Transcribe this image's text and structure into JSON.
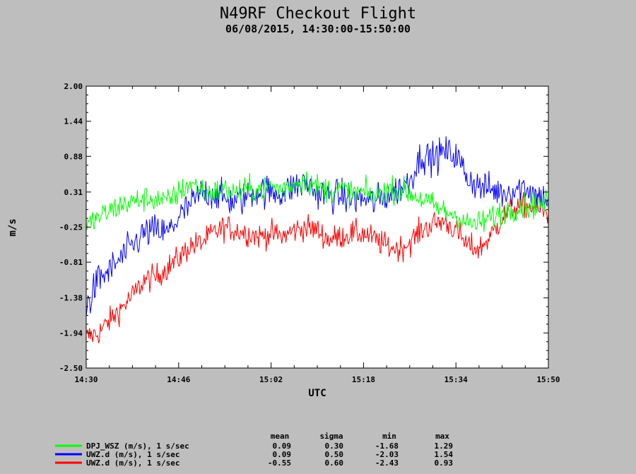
{
  "chart_data": {
    "type": "line",
    "title": "N49RF Checkout Flight",
    "subtitle": "06/08/2015, 14:30:00-15:50:00",
    "xlabel": "UTC",
    "ylabel": "m/s",
    "xlim": [
      "14:30",
      "15:50"
    ],
    "ylim": [
      -2.5,
      2.0
    ],
    "x_ticks": [
      "14:30",
      "14:46",
      "15:02",
      "15:18",
      "15:34",
      "15:50"
    ],
    "y_ticks": [
      "2.00",
      "1.44",
      "0.88",
      "0.31",
      "-0.25",
      "-0.81",
      "-1.38",
      "-1.94",
      "-2.50"
    ],
    "grid": false,
    "legend_position": "bottom-left",
    "stats_headers": [
      "mean",
      "sigma",
      "min",
      "max"
    ],
    "series": [
      {
        "name": "UWZ.d (m/s), 1 s/sec",
        "color": "#0000ff",
        "times": [
          "14:30",
          "14:32",
          "14:34",
          "14:36",
          "14:38",
          "14:40",
          "14:42",
          "14:44",
          "14:46",
          "14:48",
          "14:50",
          "14:52",
          "14:54",
          "14:56",
          "14:58",
          "15:00",
          "15:02",
          "15:04",
          "15:06",
          "15:08",
          "15:10",
          "15:12",
          "15:14",
          "15:16",
          "15:18",
          "15:20",
          "15:22",
          "15:24",
          "15:26",
          "15:28",
          "15:30",
          "15:32",
          "15:34",
          "15:36",
          "15:38",
          "15:40",
          "15:42",
          "15:44",
          "15:46",
          "15:48",
          "15:50"
        ],
        "values": [
          -1.55,
          -1.1,
          -0.95,
          -0.75,
          -0.55,
          -0.35,
          -0.3,
          -0.35,
          -0.1,
          0.1,
          0.3,
          0.3,
          0.2,
          0.15,
          0.25,
          0.35,
          0.3,
          0.3,
          0.4,
          0.45,
          0.3,
          0.25,
          0.25,
          0.2,
          0.2,
          0.15,
          0.25,
          0.35,
          0.5,
          0.9,
          0.85,
          0.95,
          0.9,
          0.55,
          0.4,
          0.35,
          0.3,
          0.35,
          0.4,
          0.25,
          0.2
        ],
        "mean": "0.09",
        "sigma": "0.50",
        "min": "-2.03",
        "max": "1.54"
      },
      {
        "name": "DPJ_WSZ (m/s), 1 s/sec",
        "color": "#00ff00",
        "times": [
          "14:30",
          "14:32",
          "14:34",
          "14:36",
          "14:38",
          "14:40",
          "14:42",
          "14:44",
          "14:46",
          "14:48",
          "14:50",
          "14:52",
          "14:54",
          "14:56",
          "14:58",
          "15:00",
          "15:02",
          "15:04",
          "15:06",
          "15:08",
          "15:10",
          "15:12",
          "15:14",
          "15:16",
          "15:18",
          "15:20",
          "15:22",
          "15:24",
          "15:26",
          "15:28",
          "15:30",
          "15:32",
          "15:34",
          "15:36",
          "15:38",
          "15:40",
          "15:42",
          "15:44",
          "15:46",
          "15:48",
          "15:50"
        ],
        "values": [
          -0.25,
          -0.1,
          0.0,
          0.1,
          0.15,
          0.2,
          0.2,
          0.15,
          0.3,
          0.45,
          0.35,
          0.3,
          0.35,
          0.3,
          0.35,
          0.35,
          0.4,
          0.35,
          0.45,
          0.5,
          0.4,
          0.35,
          0.35,
          0.3,
          0.3,
          0.25,
          0.35,
          0.35,
          0.3,
          0.2,
          0.1,
          0.0,
          -0.05,
          -0.2,
          -0.2,
          -0.1,
          0.0,
          0.05,
          0.1,
          0.1,
          0.15
        ],
        "mean": "0.09",
        "sigma": "0.30",
        "min": "-1.68",
        "max": "1.29"
      },
      {
        "name": "UWZ.d (m/s), 1 s/sec",
        "color": "#ff0000",
        "times": [
          "14:30",
          "14:32",
          "14:34",
          "14:36",
          "14:38",
          "14:40",
          "14:42",
          "14:44",
          "14:46",
          "14:48",
          "14:50",
          "14:52",
          "14:54",
          "14:56",
          "14:58",
          "15:00",
          "15:02",
          "15:04",
          "15:06",
          "15:08",
          "15:10",
          "15:12",
          "15:14",
          "15:16",
          "15:18",
          "15:20",
          "15:22",
          "15:24",
          "15:26",
          "15:28",
          "15:30",
          "15:32",
          "15:34",
          "15:36",
          "15:38",
          "15:40",
          "15:42",
          "15:44",
          "15:46",
          "15:48",
          "15:50"
        ],
        "values": [
          -2.0,
          -1.95,
          -1.75,
          -1.55,
          -1.35,
          -1.1,
          -1.05,
          -0.9,
          -0.75,
          -0.55,
          -0.5,
          -0.35,
          -0.25,
          -0.3,
          -0.35,
          -0.4,
          -0.35,
          -0.4,
          -0.3,
          -0.25,
          -0.3,
          -0.45,
          -0.4,
          -0.35,
          -0.35,
          -0.45,
          -0.55,
          -0.6,
          -0.5,
          -0.3,
          -0.2,
          -0.15,
          -0.3,
          -0.55,
          -0.6,
          -0.4,
          -0.1,
          0.05,
          0.1,
          0.05,
          -0.05
        ],
        "mean": "-0.55",
        "sigma": "0.60",
        "min": "-2.43",
        "max": "0.93"
      }
    ]
  }
}
